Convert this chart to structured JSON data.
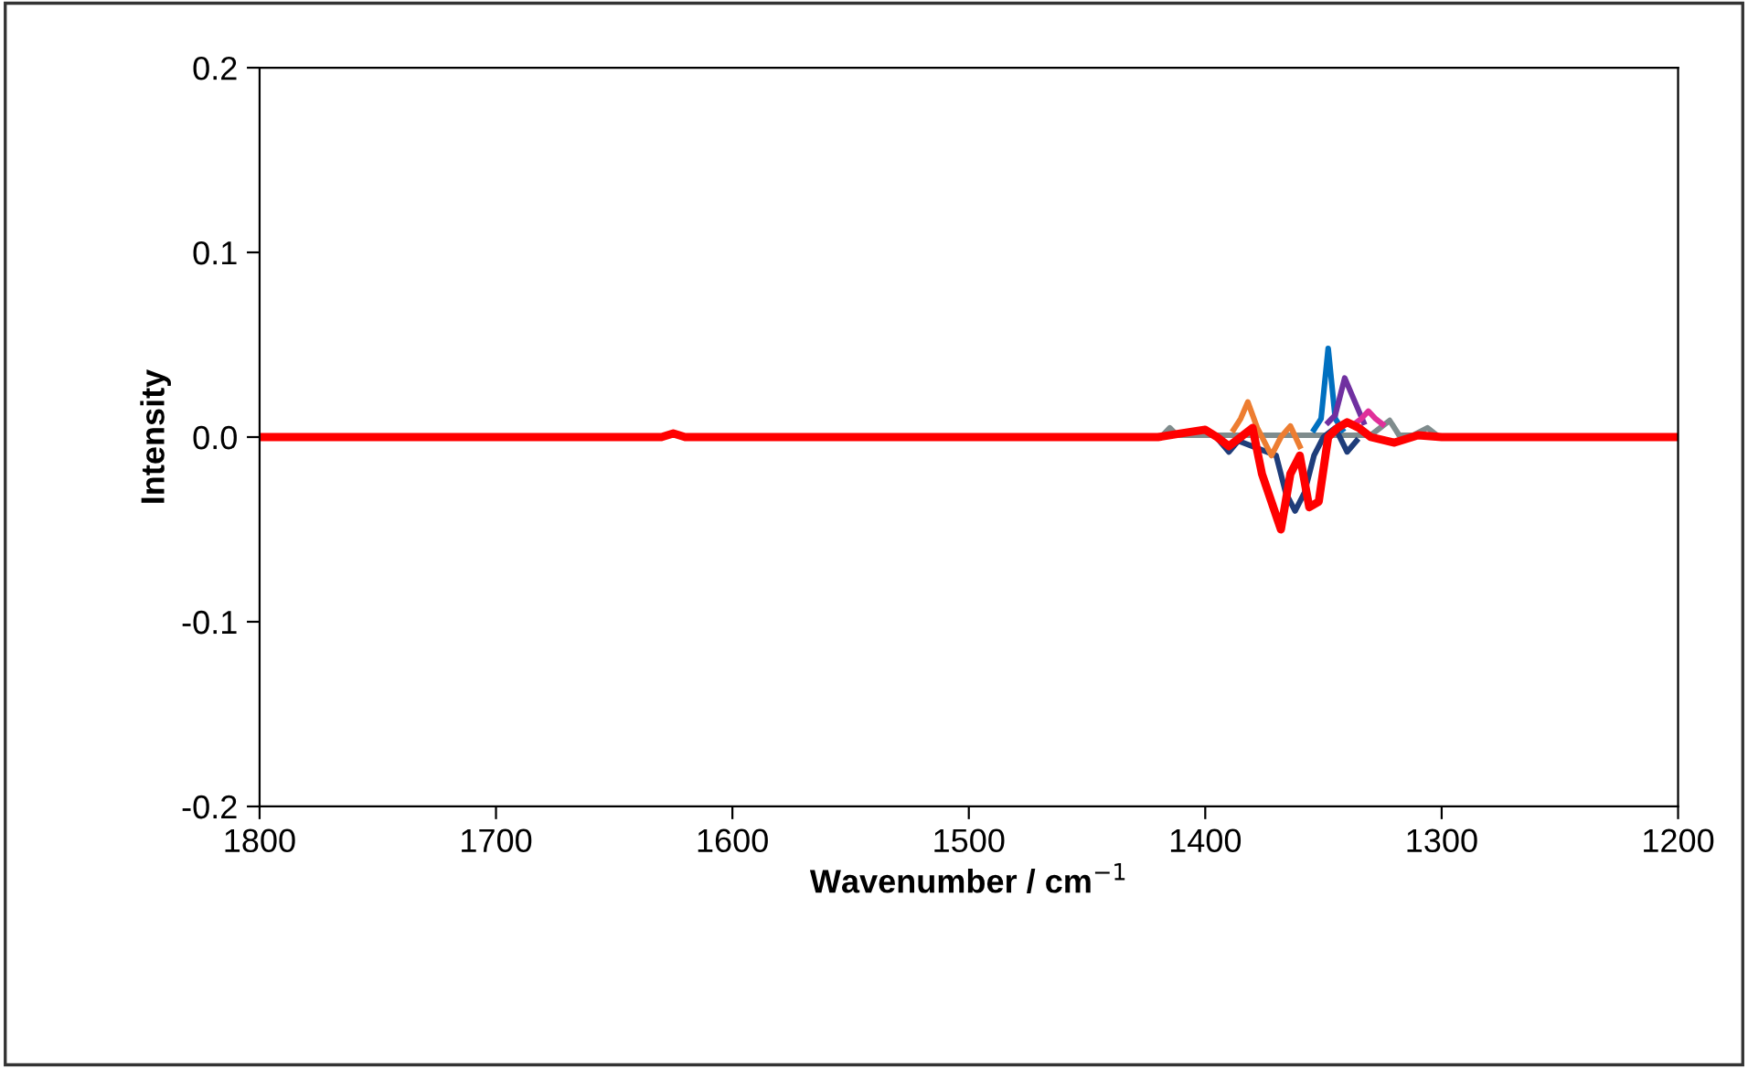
{
  "chart_data": {
    "type": "line",
    "xlabel": "Wavenumber / cm$^{−1}$",
    "ylabel": "Intensity",
    "xlim": [
      1800,
      1200
    ],
    "xticks": [
      1800,
      1700,
      1600,
      1500,
      1400,
      1300,
      1200
    ],
    "ylim": [
      -0.2,
      0.2
    ],
    "yticks": [
      {
        "value": -0.2,
        "label": "-0.2"
      },
      {
        "value": -0.1,
        "label": "-0.1"
      },
      {
        "value": 0,
        "label": "0.0"
      },
      {
        "value": 0.1,
        "label": "0.1"
      },
      {
        "value": 0.2,
        "label": "0.2"
      }
    ],
    "grid": false,
    "legend": false,
    "marker": "none",
    "line_style": "solid",
    "series": [
      {
        "color": "#7f8c8d",
        "x": [
          1418,
          1415,
          1412,
          1330,
          1322,
          1318,
          1312,
          1306,
          1302
        ],
        "values": [
          0.001,
          0.005,
          0.001,
          0.001,
          0.009,
          0.001,
          0.001,
          0.005,
          0.001
        ]
      },
      {
        "color": "#1f3d7a",
        "x": [
          1394,
          1390,
          1386,
          1370,
          1366,
          1362,
          1358,
          1354,
          1350,
          1345,
          1340,
          1336
        ],
        "values": [
          -0.002,
          -0.008,
          -0.002,
          -0.01,
          -0.03,
          -0.04,
          -0.03,
          -0.01,
          0,
          0.005,
          -0.008,
          -0.002
        ]
      },
      {
        "color": "#0070c0",
        "x": [
          1354,
          1351,
          1348,
          1345,
          1342
        ],
        "values": [
          0.004,
          0.01,
          0.048,
          0.01,
          0.004
        ]
      },
      {
        "color": "#7030a0",
        "x": [
          1348,
          1345,
          1341,
          1337,
          1333
        ],
        "values": [
          0.008,
          0.012,
          0.032,
          0.02,
          0.008
        ]
      },
      {
        "color": "#e0309a",
        "x": [
          1336,
          1334,
          1331,
          1328,
          1325
        ],
        "values": [
          0.008,
          0.01,
          0.014,
          0.01,
          0.007
        ]
      },
      {
        "color": "#ed7d31",
        "x": [
          1388,
          1385,
          1382,
          1378,
          1372,
          1368,
          1364,
          1360
        ],
        "values": [
          0.004,
          0.01,
          0.019,
          0.005,
          -0.01,
          0,
          0.006,
          -0.005
        ]
      },
      {
        "color": "#ff0000",
        "x": [
          1800,
          1630,
          1625,
          1620,
          1420,
          1410,
          1400,
          1395,
          1390,
          1385,
          1380,
          1376,
          1372,
          1368,
          1364,
          1360,
          1356,
          1352,
          1348,
          1344,
          1340,
          1335,
          1330,
          1320,
          1310,
          1300,
          1200
        ],
        "values": [
          0,
          0,
          0.002,
          0,
          0,
          0.002,
          0.004,
          0,
          -0.005,
          0,
          0.005,
          -0.02,
          -0.035,
          -0.05,
          -0.02,
          -0.01,
          -0.038,
          -0.035,
          0,
          0.005,
          0.008,
          0.005,
          0,
          -0.003,
          0.001,
          0,
          0
        ]
      }
    ]
  }
}
